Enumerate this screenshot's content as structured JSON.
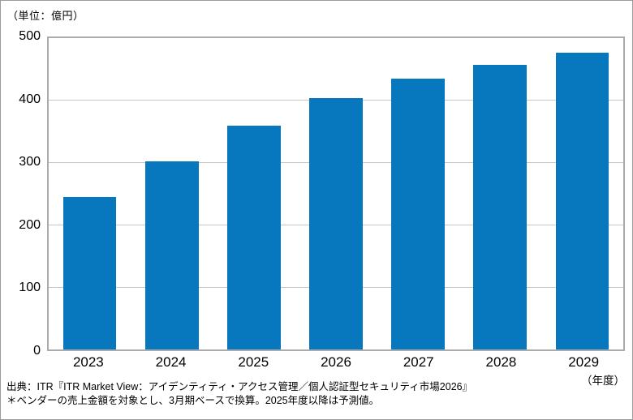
{
  "unit_label": "（単位：億円）",
  "x_unit_label": "（年度）",
  "footer": {
    "line1": "出典：ITR『ITR Market View：アイデンティティ・アクセス管理／個人認証型セキュリティ市場2026』",
    "line2": "＊ベンダーの売上金額を対象とし、3月期ベースで換算。2025年度以降は予測値。"
  },
  "colors": {
    "bar": "#0778bd",
    "gridline": "#c6c6c6",
    "plot_border": "#ababab",
    "outer_border": "#9b9b9b",
    "text": "#000000"
  },
  "chart_data": {
    "type": "bar",
    "categories": [
      "2023",
      "2024",
      "2025",
      "2026",
      "2027",
      "2028",
      "2029"
    ],
    "values": [
      245,
      302,
      360,
      404,
      435,
      457,
      476
    ],
    "title": "",
    "xlabel": "（年度）",
    "ylabel": "（単位：億円）",
    "ylim": [
      0,
      500
    ],
    "yticks": [
      0,
      100,
      200,
      300,
      400,
      500
    ],
    "grid": true,
    "legend": false
  }
}
